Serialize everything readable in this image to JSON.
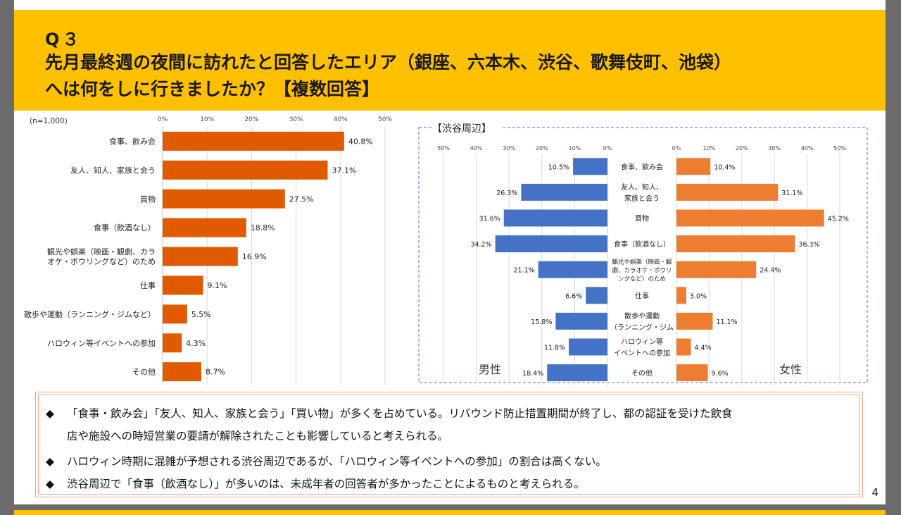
{
  "header": {
    "q_label": "Q３",
    "line1": "先月最終週の夜間に訪れたと回答したエリア（銀座、六本木、渋谷、歌舞伎町、池袋）",
    "line2": "へは何をしに行きましたか？【複数回答】"
  },
  "colors": {
    "orange": "#e05a00",
    "orange_light": "#ed7d31",
    "blue": "#4472c4",
    "header_bg": "#ffc000"
  },
  "chart_data": [
    {
      "type": "bar",
      "orientation": "horizontal",
      "title": "",
      "sample": "(n=1,000)",
      "xlim": [
        0,
        50
      ],
      "ticks": [
        "0%",
        "10%",
        "20%",
        "30%",
        "40%",
        "50%"
      ],
      "categories": [
        "食事、飲み会",
        "友人、知人、家族と会う",
        "買物",
        "食事（飲酒なし）",
        "観光や娯楽（映画・観劇、カラオケ・ボウリングなど）のため",
        "仕事",
        "散歩や運動（ランニング・ジムなど）",
        "ハロウィン等イベントへの参加",
        "その他"
      ],
      "category_lines": [
        [
          "食事、飲み会"
        ],
        [
          "友人、知人、家族と会う"
        ],
        [
          "買物"
        ],
        [
          "食事（飲酒なし）"
        ],
        [
          "観光や娯楽（映画・観劇、カラ",
          "オケ・ボウリングなど）のため"
        ],
        [
          "仕事"
        ],
        [
          "散歩や運動（ランニング・ジムなど）"
        ],
        [
          "ハロウィン等イベントへの参加"
        ],
        [
          "その他"
        ]
      ],
      "values": [
        40.8,
        37.1,
        27.5,
        18.8,
        16.9,
        9.1,
        5.5,
        4.3,
        8.7
      ],
      "value_labels": [
        "40.8%",
        "37.1%",
        "27.5%",
        "18.8%",
        "16.9%",
        "9.1%",
        "5.5%",
        "4.3%",
        "8.7%"
      ]
    },
    {
      "type": "bar",
      "orientation": "butterfly",
      "title": "【渋谷周辺】",
      "xlim": [
        0,
        50
      ],
      "ticks": [
        "50%",
        "40%",
        "30%",
        "20%",
        "10%",
        "0%"
      ],
      "ticks_right": [
        "0%",
        "10%",
        "20%",
        "30%",
        "40%",
        "50%"
      ],
      "category_lines": [
        [
          "食事、飲み会"
        ],
        [
          "友人、知人、",
          "家族と会う"
        ],
        [
          "買物"
        ],
        [
          "食事（飲酒なし）"
        ],
        [
          "観光や娯楽（映画・観",
          "劇、カラオケ・ボウリ",
          "ングなど）のため"
        ],
        [
          "仕事"
        ],
        [
          "散歩や運動",
          "（ランニング・ジム"
        ],
        [
          "ハロウィン等",
          "イベントへの参加"
        ],
        [
          "その他"
        ]
      ],
      "series": [
        {
          "name": "男性",
          "values": [
            10.5,
            26.3,
            31.6,
            34.2,
            21.1,
            6.6,
            15.8,
            11.8,
            18.4
          ],
          "labels": [
            "10.5%",
            "26.3%",
            "31.6%",
            "34.2%",
            "21.1%",
            "6.6%",
            "15.8%",
            "11.8%",
            "18.4%"
          ]
        },
        {
          "name": "女性",
          "values": [
            10.4,
            31.1,
            45.2,
            36.3,
            24.4,
            3.0,
            11.1,
            4.4,
            9.6
          ],
          "labels": [
            "10.4%",
            "31.1%",
            "45.2%",
            "36.3%",
            "24.4%",
            "3.0%",
            "11.1%",
            "4.4%",
            "9.6%"
          ]
        }
      ]
    }
  ],
  "notes": {
    "bullet": "◆",
    "n1a": "「食事・飲み会」「友人、知人、家族と会う」「買い物」が多くを占めている。リバウンド防止措置期間が終了し、都の認証を受けた飲食",
    "n1b": "店や施設への時短営業の要請が解除されたことも影響していると考えられる。",
    "n2": "ハロウィン時期に混雑が予想される渋谷周辺であるが、「ハロウィン等イベントへの参加」の割合は高くない。",
    "n3": "渋谷周辺で「食事（飲酒なし）」が多いのは、未成年者の回答者が多かったことによるものと考えられる。"
  },
  "page_number": "4"
}
